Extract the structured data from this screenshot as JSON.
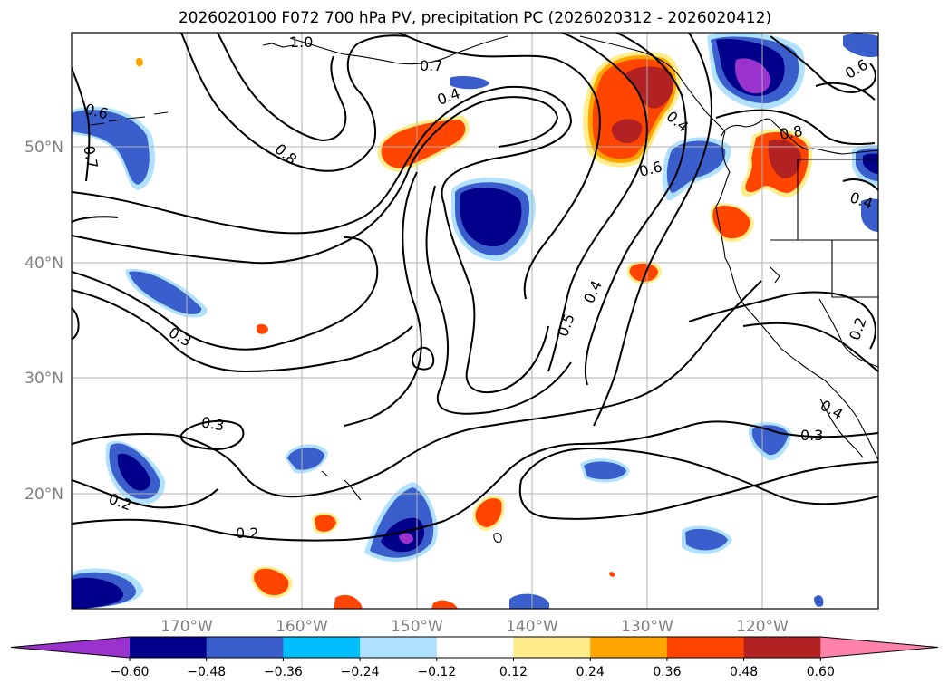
{
  "title": "2026020100 F072 700 hPa PV, precipitation PC (2026020312 - 2026020412)",
  "lon_ticks": [
    "170°W",
    "160°W",
    "150°W",
    "140°W",
    "130°W",
    "120°W"
  ],
  "lat_ticks": [
    "50°N",
    "40°N",
    "30°N",
    "20°N"
  ],
  "colorbar": {
    "ticks": [
      "−0.60",
      "−0.48",
      "−0.36",
      "−0.24",
      "−0.12",
      "0.12",
      "0.24",
      "0.36",
      "0.48",
      "0.60"
    ],
    "colors": [
      "#9a32cd",
      "#00008b",
      "#3a5fcd",
      "#00bfff",
      "#b0e2ff",
      "#ffffff",
      "#ffec8b",
      "#ffa500",
      "#ff4500",
      "#b22222",
      "#ff82ab"
    ]
  },
  "contour_labels": [
    "1.0",
    "0.7",
    "0.4",
    "0.6",
    "0.7",
    "0.8",
    "0.6",
    "0.8",
    "0.6",
    "0.4",
    "0.5",
    "0.4",
    "0.3",
    "0.2",
    "0.3",
    "0.2",
    "0.2",
    "0.4",
    "0.3",
    "0.4"
  ]
}
